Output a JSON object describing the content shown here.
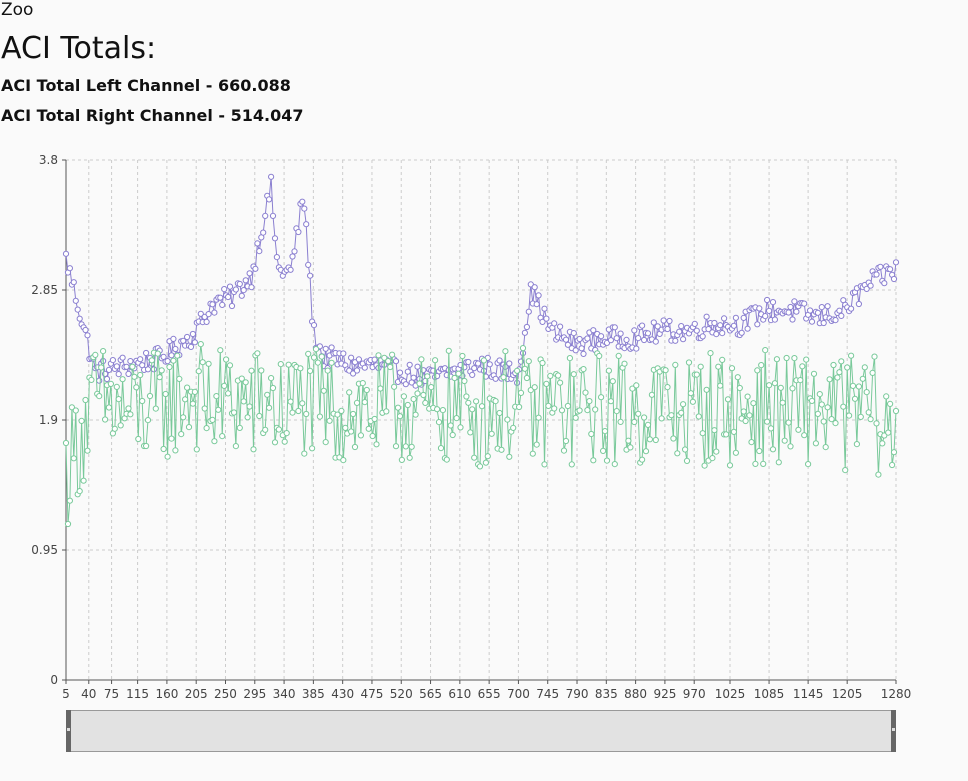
{
  "header": {
    "breadcrumb": "Zoo",
    "title": "ACI Totals:",
    "left_channel": "ACI Total Left Channel - 660.088",
    "right_channel": "ACI Total Right Channel - 514.047"
  },
  "colors": {
    "left_series": "#8a7fd0",
    "right_series": "#79c99a",
    "grid": "#cccccc",
    "slider": "#e2e2e2"
  },
  "chart_data": {
    "type": "line",
    "title": "",
    "xlabel": "",
    "ylabel": "",
    "ylim": [
      0,
      3.8
    ],
    "xlim": [
      5,
      1280
    ],
    "y_ticks": [
      "0",
      "0.95",
      "1.9",
      "2.85",
      "3.8"
    ],
    "x_ticks": [
      "5",
      "40",
      "75",
      "115",
      "160",
      "205",
      "250",
      "295",
      "340",
      "385",
      "430",
      "475",
      "520",
      "565",
      "610",
      "655",
      "700",
      "745",
      "790",
      "835",
      "880",
      "925",
      "970",
      "1025",
      "1085",
      "1145",
      "1205",
      "1280"
    ],
    "grid": true,
    "legend": "none",
    "x": [
      5,
      50,
      100,
      150,
      200,
      230,
      260,
      290,
      320,
      330,
      350,
      370,
      385,
      400,
      420,
      440,
      480,
      520,
      560,
      600,
      640,
      680,
      700,
      720,
      750,
      790,
      830,
      880,
      920,
      960,
      1000,
      1040,
      1080,
      1120,
      1160,
      1200,
      1240,
      1280
    ],
    "series": [
      {
        "values": [
          3.08,
          2.25,
          2.3,
          2.35,
          2.52,
          2.75,
          2.8,
          2.95,
          3.6,
          3.0,
          2.98,
          3.55,
          2.55,
          2.35,
          2.35,
          2.3,
          2.3,
          2.25,
          2.2,
          2.25,
          2.3,
          2.25,
          2.25,
          2.85,
          2.55,
          2.45,
          2.5,
          2.5,
          2.55,
          2.55,
          2.6,
          2.6,
          2.7,
          2.7,
          2.65,
          2.7,
          2.9,
          3.0
        ]
      },
      {
        "values": [
          1.52,
          2.05,
          1.95,
          2.0,
          2.1,
          2.0,
          2.05,
          2.0,
          2.05,
          1.95,
          2.0,
          2.05,
          2.0,
          2.0,
          1.95,
          2.0,
          1.95,
          2.0,
          1.95,
          2.0,
          1.95,
          2.0,
          2.05,
          1.95,
          2.0,
          1.95,
          2.0,
          1.95,
          2.0,
          1.95,
          2.0,
          1.95,
          2.0,
          1.95,
          2.0,
          1.95,
          2.0,
          1.7
        ]
      }
    ]
  }
}
